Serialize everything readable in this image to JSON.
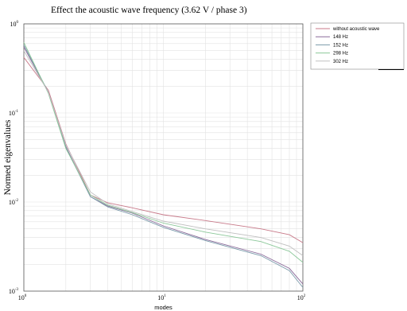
{
  "chart_data": {
    "type": "line",
    "title": "Effect the acoustic wave frequency (3.62 V / phase 3)",
    "xlabel": "modes",
    "ylabel": "Normed eigenvalues",
    "xscale": "log",
    "yscale": "log",
    "xlim": [
      1,
      100
    ],
    "ylim": [
      0.001,
      1
    ],
    "grid": true,
    "legend_position": "outside-top-right",
    "x_ticks": [
      {
        "base": "10",
        "exp": "0"
      },
      {
        "base": "10",
        "exp": "1"
      },
      {
        "base": "10",
        "exp": "2"
      }
    ],
    "y_ticks": [
      {
        "base": "10",
        "exp": "0"
      },
      {
        "base": "10",
        "exp": "-1"
      },
      {
        "base": "10",
        "exp": "-2"
      },
      {
        "base": "10",
        "exp": "-3"
      }
    ],
    "series": [
      {
        "name": "without acoustic wave",
        "color": "#c87a8a",
        "x": [
          1,
          1.5,
          2,
          3,
          4,
          6,
          10,
          20,
          50,
          80,
          100
        ],
        "y": [
          0.42,
          0.18,
          0.045,
          0.012,
          0.0098,
          0.0086,
          0.0072,
          0.0062,
          0.005,
          0.0043,
          0.0035
        ]
      },
      {
        "name": "148 Hz",
        "color": "#8a6a9a",
        "x": [
          1,
          1.5,
          2,
          3,
          4,
          6,
          10,
          20,
          50,
          80,
          100
        ],
        "y": [
          0.55,
          0.17,
          0.042,
          0.0115,
          0.009,
          0.0075,
          0.0054,
          0.0038,
          0.0026,
          0.0018,
          0.0012
        ]
      },
      {
        "name": "152 Hz",
        "color": "#7a9aaa",
        "x": [
          1,
          1.5,
          2,
          3,
          4,
          6,
          10,
          20,
          50,
          80,
          100
        ],
        "y": [
          0.58,
          0.17,
          0.041,
          0.0115,
          0.0088,
          0.0072,
          0.0052,
          0.0037,
          0.0025,
          0.0017,
          0.0011
        ]
      },
      {
        "name": "298 Hz",
        "color": "#8cc89a",
        "x": [
          1,
          1.5,
          2,
          3,
          4,
          6,
          10,
          20,
          50,
          80,
          100
        ],
        "y": [
          0.62,
          0.165,
          0.04,
          0.012,
          0.0092,
          0.0076,
          0.0058,
          0.0046,
          0.0036,
          0.0028,
          0.0021
        ]
      },
      {
        "name": "302 Hz",
        "color": "#c0c0c0",
        "x": [
          1,
          1.5,
          2,
          3,
          4,
          6,
          10,
          20,
          50,
          80,
          100
        ],
        "y": [
          0.5,
          0.17,
          0.044,
          0.013,
          0.0095,
          0.0078,
          0.0061,
          0.005,
          0.004,
          0.0032,
          0.0025
        ]
      }
    ]
  }
}
